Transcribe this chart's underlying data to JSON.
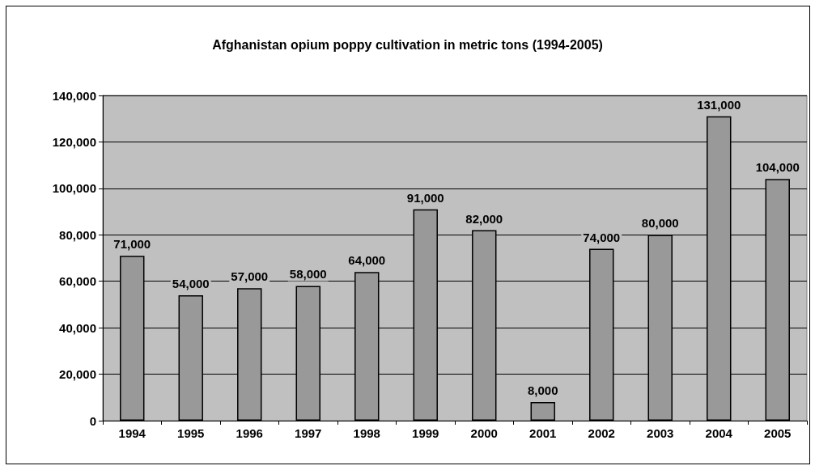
{
  "chart_data": {
    "type": "bar",
    "title": "Afghanistan opium poppy cultivation in metric tons (1994-2005)",
    "categories": [
      "1994",
      "1995",
      "1996",
      "1997",
      "1998",
      "1999",
      "2000",
      "2001",
      "2002",
      "2003",
      "2004",
      "2005"
    ],
    "values": [
      71000,
      54000,
      57000,
      58000,
      64000,
      91000,
      82000,
      8000,
      74000,
      80000,
      131000,
      104000
    ],
    "value_labels": [
      "71,000",
      "54,000",
      "57,000",
      "58,000",
      "64,000",
      "91,000",
      "82,000",
      "8,000",
      "74,000",
      "80,000",
      "131,000",
      "104,000"
    ],
    "color": "#999999",
    "ylim": [
      0,
      140000
    ],
    "yticks": [
      {
        "value": 0,
        "label": "0"
      },
      {
        "value": 20000,
        "label": "20,000"
      },
      {
        "value": 40000,
        "label": "40,000"
      },
      {
        "value": 60000,
        "label": "60,000"
      },
      {
        "value": 80000,
        "label": "80,000"
      },
      {
        "value": 100000,
        "label": "100,000"
      },
      {
        "value": 120000,
        "label": "120,000"
      },
      {
        "value": 140000,
        "label": "140,000"
      }
    ],
    "grid": "y"
  }
}
